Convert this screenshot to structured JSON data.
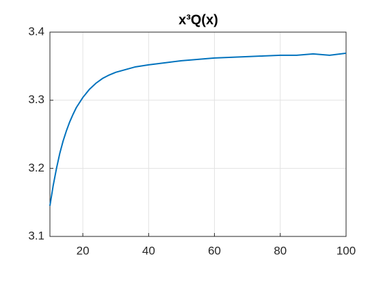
{
  "chart_data": {
    "type": "line",
    "title": "x³Q(x)",
    "x": [
      10,
      11,
      12,
      13,
      14,
      15,
      16,
      17,
      18,
      20,
      22,
      24,
      26,
      28,
      30,
      33,
      36,
      40,
      45,
      50,
      55,
      60,
      65,
      70,
      75,
      80,
      85,
      90,
      95,
      100
    ],
    "series": [
      {
        "color": "#0072bd",
        "values": [
          3.145,
          3.175,
          3.2,
          3.222,
          3.24,
          3.255,
          3.268,
          3.279,
          3.289,
          3.304,
          3.316,
          3.325,
          3.332,
          3.337,
          3.341,
          3.345,
          3.349,
          3.352,
          3.355,
          3.358,
          3.36,
          3.362,
          3.363,
          3.364,
          3.365,
          3.366,
          3.366,
          3.368,
          3.366,
          3.369
        ]
      }
    ],
    "xlim": [
      10,
      100
    ],
    "xticks": [
      20,
      40,
      60,
      80,
      100
    ],
    "ylim": [
      3.1,
      3.4
    ],
    "yticks": [
      3.1,
      3.2,
      3.3,
      3.4
    ],
    "grid": true
  }
}
